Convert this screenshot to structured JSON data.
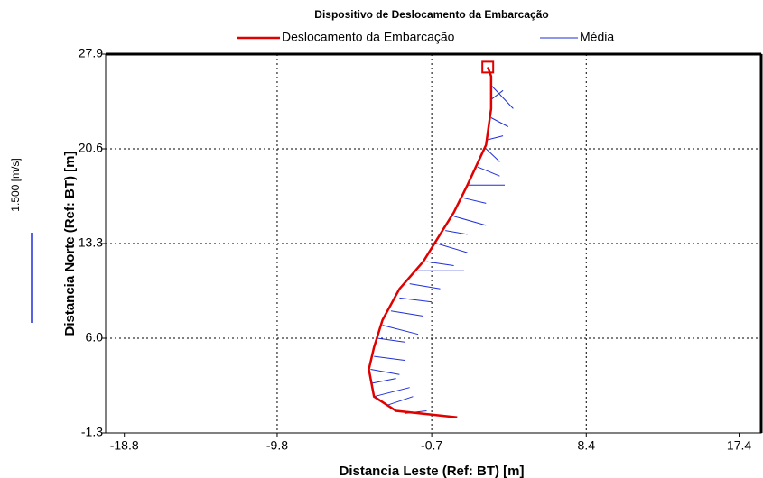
{
  "chart_data": {
    "type": "line",
    "title": "Dispositivo de Deslocamento da Embarcação",
    "xlabel": "Distancia Leste (Ref: BT) [m]",
    "ylabel": "Distancia Norte (Ref: BT) [m]",
    "scale_label": "1.500 [m/s]",
    "xlim": [
      -19.9,
      18.7
    ],
    "ylim": [
      -1.3,
      27.9
    ],
    "xticks": [
      -18.8,
      -9.8,
      -0.7,
      8.4,
      17.4
    ],
    "yticks": [
      -1.3,
      {
        "value": 6,
        "label": "6.0"
      },
      13.3,
      20.6,
      27.9
    ],
    "grid": true,
    "series": [
      {
        "name": "Deslocamento da Embarcação",
        "color": "#e00000",
        "x": [
          0.8,
          -2.8,
          -4.1,
          -4.4,
          -4.1,
          -3.6,
          -2.6,
          -1.2,
          -0.4,
          0.6,
          1.4,
          2.5,
          2.8,
          2.8,
          2.6
        ],
        "y": [
          -0.1,
          0.4,
          1.5,
          3.6,
          5.3,
          7.4,
          9.8,
          11.9,
          13.6,
          15.7,
          17.8,
          20.9,
          23.7,
          26.2,
          26.9
        ]
      },
      {
        "name": "Média",
        "color": "#1f2fd8",
        "x": [
          2.8,
          4.1,
          null,
          2.8,
          3.5,
          null,
          2.8,
          3.8,
          null,
          2.6,
          3.5,
          null,
          2.5,
          3.3,
          null,
          2.0,
          3.3,
          null,
          1.4,
          3.6,
          null,
          1.2,
          2.5,
          null,
          0.6,
          2.5,
          null,
          0.1,
          1.4,
          null,
          -0.4,
          1.4,
          null,
          -1.0,
          0.6,
          null,
          -1.5,
          1.2,
          null,
          -2.0,
          -0.2,
          null,
          -2.6,
          -0.7,
          null,
          -3.1,
          -1.2,
          null,
          -3.6,
          -1.5,
          null,
          -3.9,
          -2.3,
          null,
          -4.1,
          -2.3,
          null,
          -4.3,
          -2.6,
          null,
          -4.3,
          -2.8,
          null,
          -4.1,
          -2.0,
          null,
          -3.4,
          -1.8,
          null,
          -2.3,
          -1.0
        ],
        "y": [
          25.5,
          23.7,
          null,
          24.4,
          25.1,
          null,
          23.0,
          22.3,
          null,
          21.3,
          21.6,
          null,
          20.6,
          19.6,
          null,
          19.2,
          18.5,
          null,
          17.8,
          17.8,
          null,
          16.8,
          16.4,
          null,
          15.4,
          14.7,
          null,
          14.3,
          14.0,
          null,
          13.3,
          12.6,
          null,
          11.9,
          11.6,
          null,
          11.2,
          11.2,
          null,
          10.2,
          9.8,
          null,
          9.1,
          8.8,
          null,
          8.1,
          7.7,
          null,
          7.0,
          6.3,
          null,
          6.0,
          5.7,
          null,
          4.6,
          4.3,
          null,
          3.6,
          3.2,
          null,
          2.5,
          2.9,
          null,
          1.5,
          2.2,
          null,
          0.8,
          1.5,
          null,
          0.2,
          0.4
        ]
      }
    ]
  }
}
